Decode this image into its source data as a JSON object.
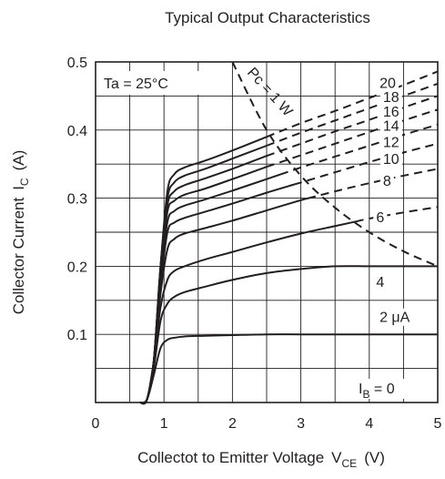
{
  "chart_data": {
    "type": "line",
    "title": "Typical Output Characteristics",
    "xlabel": "Collectot to Emitter Voltage",
    "xlabel_symbol": "V",
    "xlabel_symbol_sub": "CE",
    "xlabel_unit": "(V)",
    "ylabel": "Collector Current",
    "ylabel_symbol": "I",
    "ylabel_symbol_sub": "C",
    "ylabel_unit": "(A)",
    "xlim": [
      0,
      5
    ],
    "ylim": [
      0,
      0.5
    ],
    "x_ticks": [
      "0",
      "1",
      "2",
      "3",
      "4",
      "5"
    ],
    "y_ticks": [
      "0.1",
      "0.2",
      "0.3",
      "0.4",
      "0.5"
    ],
    "grid": true,
    "condition": "Ta = 25°C",
    "power_limit_label": "Pc = 1 W",
    "power_limit_curve": {
      "x": [
        2.0,
        2.5,
        3.0,
        3.5,
        4.0,
        4.5,
        5.0
      ],
      "y": [
        0.5,
        0.4,
        0.333,
        0.286,
        0.25,
        0.222,
        0.2
      ]
    },
    "series": [
      {
        "name": "20",
        "x": [
          0.65,
          0.75,
          0.85,
          0.95,
          1.05,
          1.15,
          1.3,
          1.6,
          2.0,
          2.5,
          3.0,
          3.5,
          4.0,
          4.5,
          5.0
        ],
        "y": [
          0.0,
          0.004,
          0.06,
          0.2,
          0.31,
          0.335,
          0.345,
          0.355,
          0.37,
          0.39,
          0.41,
          0.428,
          0.447,
          0.466,
          0.486
        ],
        "dashed_from": 2.5
      },
      {
        "name": "18",
        "x": [
          0.65,
          0.75,
          0.85,
          0.95,
          1.05,
          1.15,
          1.3,
          1.6,
          2.0,
          2.5,
          3.0,
          3.5,
          4.0,
          4.5,
          5.0
        ],
        "y": [
          0.0,
          0.004,
          0.06,
          0.2,
          0.3,
          0.323,
          0.333,
          0.343,
          0.358,
          0.377,
          0.396,
          0.414,
          0.432,
          0.45,
          0.468
        ],
        "dashed_from": 2.5
      },
      {
        "name": "16",
        "x": [
          0.65,
          0.75,
          0.85,
          0.95,
          1.05,
          1.15,
          1.3,
          1.6,
          2.0,
          2.5,
          3.0,
          3.5,
          4.0,
          4.5,
          5.0
        ],
        "y": [
          0.0,
          0.004,
          0.06,
          0.2,
          0.29,
          0.31,
          0.319,
          0.329,
          0.343,
          0.362,
          0.38,
          0.398,
          0.415,
          0.433,
          0.45
        ],
        "dashed_from": 2.5
      },
      {
        "name": "14",
        "x": [
          0.65,
          0.75,
          0.85,
          0.95,
          1.05,
          1.15,
          1.3,
          1.6,
          2.0,
          2.5,
          3.0,
          3.5,
          4.0,
          4.5,
          5.0
        ],
        "y": [
          0.0,
          0.004,
          0.06,
          0.19,
          0.28,
          0.296,
          0.305,
          0.314,
          0.328,
          0.346,
          0.363,
          0.38,
          0.397,
          0.414,
          0.43
        ],
        "dashed_from": 2.5
      },
      {
        "name": "12",
        "x": [
          0.65,
          0.75,
          0.85,
          0.95,
          1.05,
          1.15,
          1.3,
          1.6,
          2.0,
          2.5,
          3.0,
          3.5,
          4.0,
          4.5,
          5.0
        ],
        "y": [
          0.0,
          0.004,
          0.06,
          0.18,
          0.265,
          0.281,
          0.289,
          0.298,
          0.311,
          0.328,
          0.345,
          0.361,
          0.377,
          0.393,
          0.408
        ],
        "dashed_from": 2.7
      },
      {
        "name": "10",
        "x": [
          0.65,
          0.75,
          0.85,
          0.95,
          1.05,
          1.15,
          1.3,
          1.6,
          2.0,
          2.5,
          3.0,
          3.5,
          4.0,
          4.5,
          5.0
        ],
        "y": [
          0.0,
          0.004,
          0.06,
          0.17,
          0.25,
          0.264,
          0.271,
          0.28,
          0.292,
          0.308,
          0.323,
          0.338,
          0.353,
          0.367,
          0.38
        ],
        "dashed_from": 2.9
      },
      {
        "name": "8",
        "x": [
          0.65,
          0.75,
          0.85,
          0.95,
          1.05,
          1.15,
          1.3,
          1.6,
          2.0,
          2.5,
          3.0,
          3.5,
          4.0,
          4.5,
          5.0
        ],
        "y": [
          0.0,
          0.004,
          0.06,
          0.16,
          0.225,
          0.24,
          0.248,
          0.256,
          0.267,
          0.282,
          0.297,
          0.31,
          0.322,
          0.333,
          0.343
        ],
        "dashed_from": 3.1
      },
      {
        "name": "6",
        "x": [
          0.65,
          0.75,
          0.85,
          0.95,
          1.05,
          1.15,
          1.3,
          1.6,
          2.0,
          2.5,
          3.0,
          3.5,
          4.0,
          4.5,
          5.0
        ],
        "y": [
          0.0,
          0.004,
          0.06,
          0.14,
          0.18,
          0.193,
          0.2,
          0.21,
          0.221,
          0.235,
          0.248,
          0.259,
          0.27,
          0.279,
          0.287
        ],
        "dashed_from": 3.8
      },
      {
        "name": "4",
        "x": [
          0.65,
          0.75,
          0.85,
          0.95,
          1.05,
          1.15,
          1.3,
          1.6,
          2.0,
          2.5,
          3.0,
          3.5,
          4.0,
          4.5,
          5.0
        ],
        "y": [
          0.0,
          0.004,
          0.05,
          0.12,
          0.145,
          0.155,
          0.162,
          0.17,
          0.18,
          0.19,
          0.196,
          0.2,
          0.2,
          0.2,
          0.2
        ]
      },
      {
        "name": "2 μA",
        "x": [
          0.65,
          0.75,
          0.85,
          0.95,
          1.05,
          1.15,
          1.3,
          1.6,
          2.0,
          2.5,
          3.0,
          3.5,
          4.0,
          4.5,
          5.0
        ],
        "y": [
          0.0,
          0.004,
          0.04,
          0.08,
          0.092,
          0.095,
          0.097,
          0.098,
          0.099,
          0.1,
          0.1,
          0.1,
          0.1,
          0.1,
          0.1
        ]
      },
      {
        "name": "IB = 0",
        "label_main": "I",
        "label_sub": "B",
        "label_rest": " = 0",
        "x": [
          0,
          5
        ],
        "y": [
          0,
          0
        ]
      }
    ],
    "curve_labels": [
      {
        "text": "20",
        "x": 4.15,
        "y": 0.462
      },
      {
        "text": "18",
        "x": 4.2,
        "y": 0.441
      },
      {
        "text": "16",
        "x": 4.2,
        "y": 0.42
      },
      {
        "text": "14",
        "x": 4.2,
        "y": 0.399
      },
      {
        "text": "12",
        "x": 4.2,
        "y": 0.375
      },
      {
        "text": "10",
        "x": 4.2,
        "y": 0.35
      },
      {
        "text": "8",
        "x": 4.2,
        "y": 0.318
      },
      {
        "text": "6",
        "x": 4.1,
        "y": 0.265
      },
      {
        "text": "4",
        "x": 4.1,
        "y": 0.17
      },
      {
        "text": "2 μA",
        "x": 4.15,
        "y": 0.118
      }
    ]
  }
}
